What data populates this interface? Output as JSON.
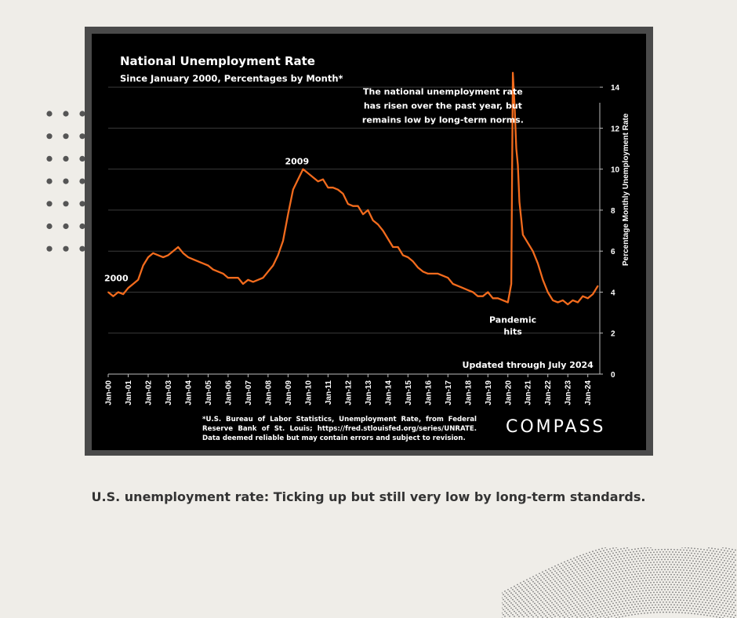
{
  "chart_data": {
    "type": "line",
    "title": "National Unemployment Rate",
    "subtitle": "Since January 2000, Percentages by Month*",
    "ylabel": "Percentage Monthly Unemployment Rate",
    "ylim": [
      0,
      15
    ],
    "yticks": [
      0,
      2,
      4,
      6,
      8,
      10,
      12,
      14
    ],
    "xlim": [
      2000.0,
      2024.6
    ],
    "xticks": [
      "Jan-00",
      "Jan-01",
      "Jan-02",
      "Jan-03",
      "Jan-04",
      "Jan-05",
      "Jan-06",
      "Jan-07",
      "Jan-08",
      "Jan-09",
      "Jan-10",
      "Jan-11",
      "Jan-12",
      "Jan-13",
      "Jan-14",
      "Jan-15",
      "Jan-16",
      "Jan-17",
      "Jan-18",
      "Jan-19",
      "Jan-20",
      "Jan-21",
      "Jan-22",
      "Jan-23",
      "Jan-24"
    ],
    "grid": true,
    "series": [
      {
        "name": "Unemployment Rate",
        "color": "#f26b1d",
        "points": [
          [
            2000.0,
            4.0
          ],
          [
            2000.25,
            3.8
          ],
          [
            2000.5,
            4.0
          ],
          [
            2000.75,
            3.9
          ],
          [
            2001.0,
            4.2
          ],
          [
            2001.25,
            4.4
          ],
          [
            2001.5,
            4.6
          ],
          [
            2001.75,
            5.3
          ],
          [
            2002.0,
            5.7
          ],
          [
            2002.25,
            5.9
          ],
          [
            2002.5,
            5.8
          ],
          [
            2002.75,
            5.7
          ],
          [
            2003.0,
            5.8
          ],
          [
            2003.25,
            6.0
          ],
          [
            2003.5,
            6.2
          ],
          [
            2003.75,
            5.9
          ],
          [
            2004.0,
            5.7
          ],
          [
            2004.25,
            5.6
          ],
          [
            2004.5,
            5.5
          ],
          [
            2004.75,
            5.4
          ],
          [
            2005.0,
            5.3
          ],
          [
            2005.25,
            5.1
          ],
          [
            2005.5,
            5.0
          ],
          [
            2005.75,
            4.9
          ],
          [
            2006.0,
            4.7
          ],
          [
            2006.25,
            4.7
          ],
          [
            2006.5,
            4.7
          ],
          [
            2006.75,
            4.4
          ],
          [
            2007.0,
            4.6
          ],
          [
            2007.25,
            4.5
          ],
          [
            2007.5,
            4.6
          ],
          [
            2007.75,
            4.7
          ],
          [
            2008.0,
            5.0
          ],
          [
            2008.25,
            5.3
          ],
          [
            2008.5,
            5.8
          ],
          [
            2008.75,
            6.5
          ],
          [
            2009.0,
            7.8
          ],
          [
            2009.25,
            9.0
          ],
          [
            2009.5,
            9.5
          ],
          [
            2009.75,
            10.0
          ],
          [
            2010.0,
            9.8
          ],
          [
            2010.25,
            9.6
          ],
          [
            2010.5,
            9.4
          ],
          [
            2010.75,
            9.5
          ],
          [
            2011.0,
            9.1
          ],
          [
            2011.25,
            9.1
          ],
          [
            2011.5,
            9.0
          ],
          [
            2011.75,
            8.8
          ],
          [
            2012.0,
            8.3
          ],
          [
            2012.25,
            8.2
          ],
          [
            2012.5,
            8.2
          ],
          [
            2012.75,
            7.8
          ],
          [
            2013.0,
            8.0
          ],
          [
            2013.25,
            7.5
          ],
          [
            2013.5,
            7.3
          ],
          [
            2013.75,
            7.0
          ],
          [
            2014.0,
            6.6
          ],
          [
            2014.25,
            6.2
          ],
          [
            2014.5,
            6.2
          ],
          [
            2014.75,
            5.8
          ],
          [
            2015.0,
            5.7
          ],
          [
            2015.25,
            5.5
          ],
          [
            2015.5,
            5.2
          ],
          [
            2015.75,
            5.0
          ],
          [
            2016.0,
            4.9
          ],
          [
            2016.25,
            4.9
          ],
          [
            2016.5,
            4.9
          ],
          [
            2016.75,
            4.8
          ],
          [
            2017.0,
            4.7
          ],
          [
            2017.25,
            4.4
          ],
          [
            2017.5,
            4.3
          ],
          [
            2017.75,
            4.2
          ],
          [
            2018.0,
            4.1
          ],
          [
            2018.25,
            4.0
          ],
          [
            2018.5,
            3.8
          ],
          [
            2018.75,
            3.8
          ],
          [
            2019.0,
            4.0
          ],
          [
            2019.25,
            3.7
          ],
          [
            2019.5,
            3.7
          ],
          [
            2019.75,
            3.6
          ],
          [
            2020.0,
            3.5
          ],
          [
            2020.17,
            4.4
          ],
          [
            2020.25,
            14.7
          ],
          [
            2020.33,
            13.2
          ],
          [
            2020.42,
            11.0
          ],
          [
            2020.5,
            10.2
          ],
          [
            2020.58,
            8.4
          ],
          [
            2020.75,
            6.8
          ],
          [
            2021.0,
            6.4
          ],
          [
            2021.25,
            6.0
          ],
          [
            2021.5,
            5.4
          ],
          [
            2021.75,
            4.6
          ],
          [
            2022.0,
            4.0
          ],
          [
            2022.25,
            3.6
          ],
          [
            2022.5,
            3.5
          ],
          [
            2022.75,
            3.6
          ],
          [
            2023.0,
            3.4
          ],
          [
            2023.25,
            3.6
          ],
          [
            2023.5,
            3.5
          ],
          [
            2023.75,
            3.8
          ],
          [
            2024.0,
            3.7
          ],
          [
            2024.25,
            3.9
          ],
          [
            2024.5,
            4.3
          ]
        ]
      }
    ],
    "annotations": {
      "label_2000": "2000",
      "label_2009": "2009",
      "note_lines": [
        "The national unemployment rate",
        "has risen over the past year, but",
        "remains low by long-term norms."
      ],
      "pandemic": [
        "Pandemic",
        "hits"
      ],
      "updated": "Updated through July 2024"
    }
  },
  "source_note": "*U.S. Bureau of Labor Statistics, Unemployment Rate, from Federal Reserve Bank of St. Louis; https://fred.stlouisfed.org/series/UNRATE. Data deemed reliable but may contain errors and subject to revision.",
  "brand": "COMPASS",
  "caption": "U.S. unemployment rate: Ticking up but still very low by long-term standards."
}
